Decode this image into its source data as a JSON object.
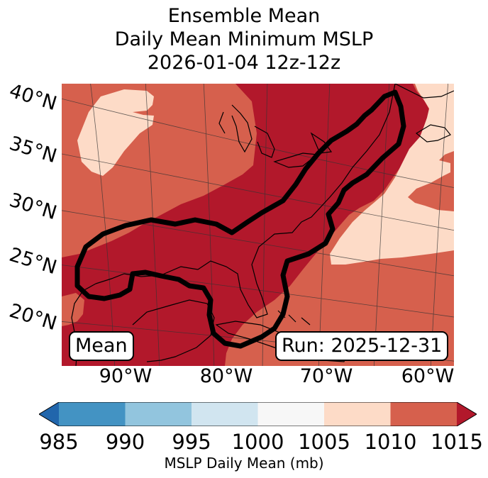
{
  "chart_data": {
    "type": "heatmap",
    "title_lines": [
      "Ensemble Mean",
      "Daily Mean Minimum MSLP",
      "2026-01-04 12z-12z"
    ],
    "lat_labels": [
      "40°N",
      "35°N",
      "30°N",
      "25°N",
      "20°N"
    ],
    "lon_labels": [
      "90°W",
      "80°W",
      "70°W",
      "60°W"
    ],
    "colorbar": {
      "label": "MSLP Daily Mean (mb)",
      "ticks": [
        "985",
        "990",
        "995",
        "1000",
        "1005",
        "1010",
        "1015"
      ],
      "bins": [
        {
          "range": [
            985,
            990
          ],
          "color": "#4393c3"
        },
        {
          "range": [
            990,
            995
          ],
          "color": "#92c5de"
        },
        {
          "range": [
            995,
            1000
          ],
          "color": "#d1e5f0"
        },
        {
          "range": [
            1000,
            1005
          ],
          "color": "#f7f7f7"
        },
        {
          "range": [
            1005,
            1010
          ],
          "color": "#fddbc7"
        },
        {
          "range": [
            1010,
            1015
          ],
          "color": "#d6604d"
        }
      ],
      "under_color": "#2166ac",
      "over_color": "#b2182b"
    },
    "annotations": {
      "left": "Mean",
      "right": "Run: 2025-12-31"
    }
  }
}
